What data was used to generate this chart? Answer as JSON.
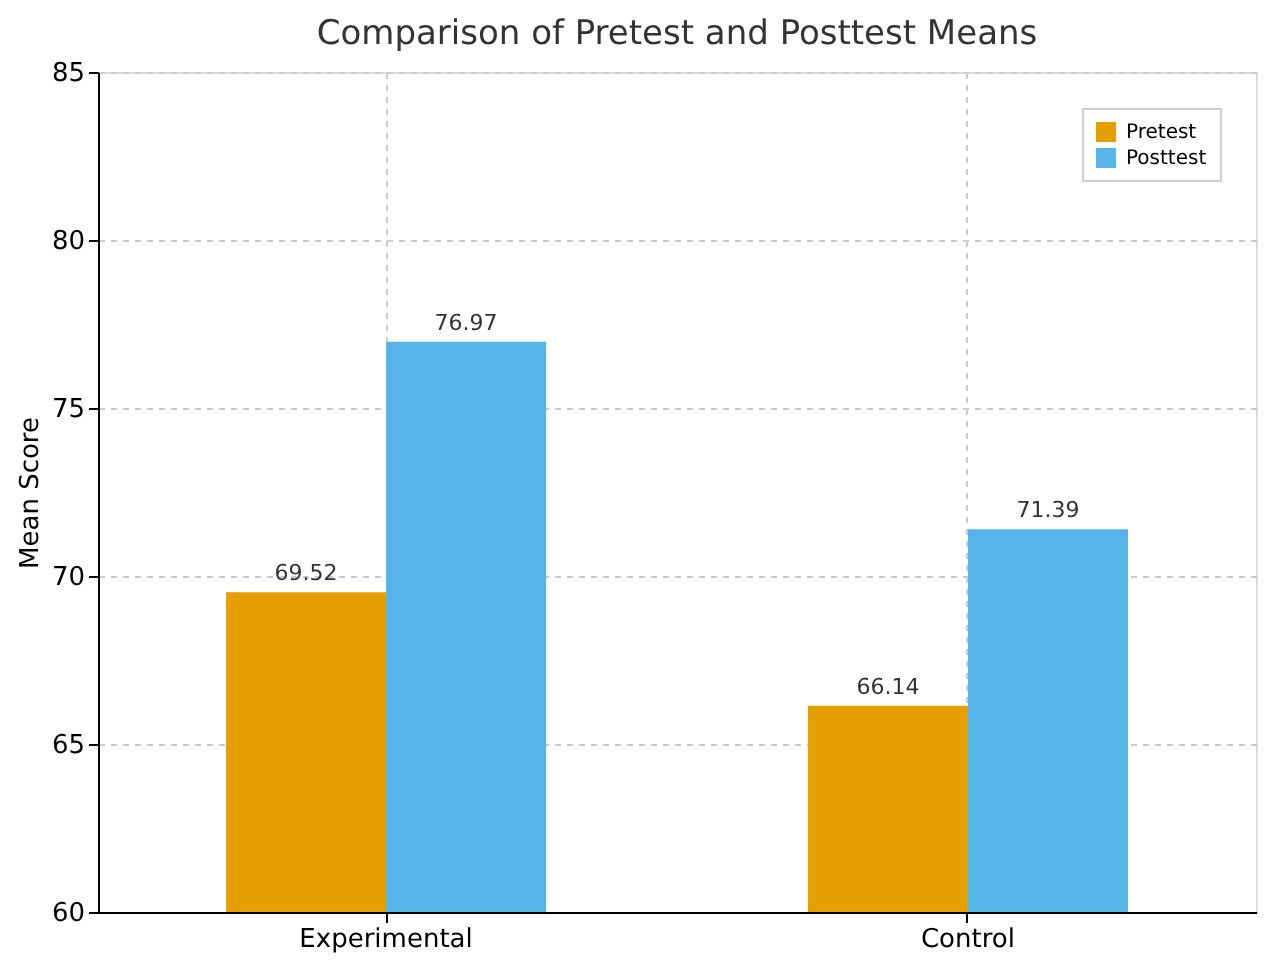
{
  "chart_data": {
    "type": "bar",
    "title": "Comparison of Pretest and Posttest Means",
    "ylabel": "Mean Score",
    "categories": [
      "Experimental",
      "Control"
    ],
    "series": [
      {
        "name": "Pretest",
        "color": "#e69f00",
        "values": [
          69.52,
          66.14
        ]
      },
      {
        "name": "Posttest",
        "color": "#56b4e9",
        "values": [
          76.97,
          71.39
        ]
      }
    ],
    "ylim": [
      60,
      85
    ],
    "yticks": [
      60,
      65,
      70,
      75,
      80,
      85
    ],
    "grid": true,
    "legend": "top right",
    "data_labels": true
  }
}
